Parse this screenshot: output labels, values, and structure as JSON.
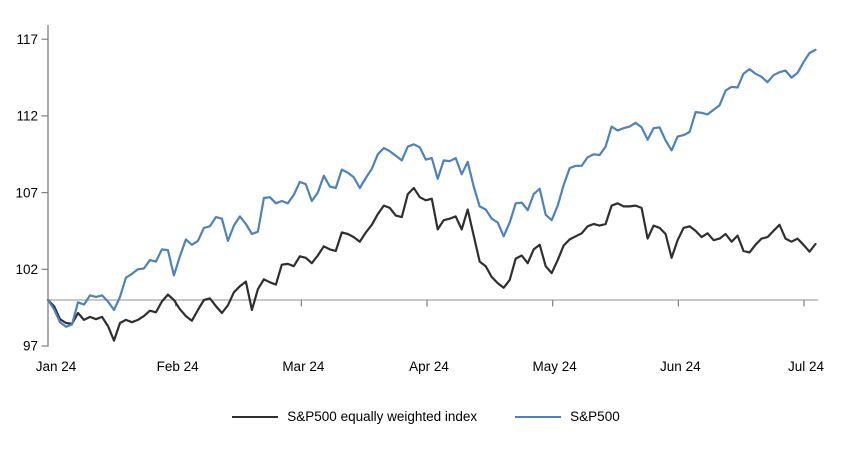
{
  "chart_data": {
    "type": "line",
    "title": "",
    "x_tick_labels": [
      "Jan 24",
      "Feb 24",
      "Mar 24",
      "Apr 24",
      "May 24",
      "Jun 24",
      "Jul 24"
    ],
    "y_ticks": [
      97,
      102,
      107,
      112,
      117
    ],
    "ylim": [
      97,
      117.5
    ],
    "baseline_value": 100,
    "grid": false,
    "legend_position": "bottom-center",
    "series": [
      {
        "name": "S&P500 equally weighted index",
        "color": "#2f2f2f",
        "values": [
          100.0,
          99.6,
          98.75,
          98.5,
          98.45,
          99.15,
          98.7,
          98.9,
          98.75,
          98.9,
          98.3,
          97.35,
          98.5,
          98.7,
          98.55,
          98.7,
          98.95,
          99.3,
          99.2,
          99.9,
          100.35,
          100.0,
          99.4,
          98.95,
          98.65,
          99.35,
          100.0,
          100.1,
          99.6,
          99.15,
          99.65,
          100.5,
          100.9,
          101.2,
          99.35,
          100.7,
          101.35,
          101.15,
          101.0,
          102.3,
          102.35,
          102.2,
          102.85,
          102.75,
          102.4,
          102.9,
          103.5,
          103.3,
          103.2,
          104.4,
          104.3,
          104.1,
          103.8,
          104.4,
          104.9,
          105.6,
          106.15,
          106.0,
          105.5,
          105.4,
          106.9,
          107.3,
          106.7,
          106.5,
          106.6,
          104.6,
          105.2,
          105.3,
          105.45,
          104.6,
          105.9,
          104.2,
          102.5,
          102.2,
          101.5,
          101.1,
          100.8,
          101.3,
          102.7,
          102.9,
          102.4,
          103.3,
          103.6,
          102.2,
          101.75,
          102.6,
          103.55,
          103.95,
          104.15,
          104.35,
          104.8,
          104.95,
          104.85,
          104.95,
          106.15,
          106.3,
          106.1,
          106.1,
          106.15,
          106.0,
          104.0,
          104.85,
          104.7,
          104.3,
          102.75,
          103.9,
          104.7,
          104.8,
          104.5,
          104.1,
          104.35,
          103.9,
          104.0,
          104.3,
          103.8,
          104.2,
          103.2,
          103.1,
          103.6,
          104.0,
          104.1,
          104.5,
          104.9,
          104.0,
          103.8,
          104.0,
          103.6,
          103.15,
          103.65
        ]
      },
      {
        "name": "S&P500",
        "color": "#4f81bd",
        "values": [
          100.0,
          99.4,
          98.55,
          98.25,
          98.4,
          99.85,
          99.7,
          100.3,
          100.2,
          100.3,
          99.9,
          99.35,
          100.2,
          101.45,
          101.7,
          102.0,
          102.05,
          102.6,
          102.5,
          103.3,
          103.25,
          101.6,
          102.85,
          103.95,
          103.6,
          103.85,
          104.7,
          104.8,
          105.4,
          105.3,
          103.85,
          104.85,
          105.45,
          104.95,
          104.3,
          104.45,
          106.65,
          106.7,
          106.3,
          106.45,
          106.3,
          106.85,
          107.7,
          107.55,
          106.45,
          107.0,
          108.1,
          107.4,
          107.3,
          108.5,
          108.3,
          108.0,
          107.3,
          107.95,
          108.55,
          109.5,
          109.9,
          109.7,
          109.4,
          109.1,
          110.0,
          110.15,
          109.95,
          109.15,
          109.25,
          107.9,
          109.1,
          109.05,
          109.25,
          108.2,
          109.0,
          107.4,
          106.1,
          105.9,
          105.3,
          105.05,
          104.15,
          105.05,
          106.3,
          106.35,
          105.85,
          106.9,
          107.25,
          105.55,
          105.2,
          106.15,
          107.5,
          108.6,
          108.75,
          108.75,
          109.3,
          109.5,
          109.45,
          110.0,
          111.3,
          111.05,
          111.2,
          111.3,
          111.55,
          111.25,
          110.45,
          111.2,
          111.25,
          110.4,
          109.75,
          110.65,
          110.75,
          110.95,
          112.25,
          112.2,
          112.1,
          112.4,
          112.7,
          113.65,
          113.9,
          113.85,
          114.75,
          115.05,
          114.75,
          114.55,
          114.2,
          114.65,
          114.85,
          114.95,
          114.5,
          114.8,
          115.5,
          116.1,
          116.3
        ]
      }
    ]
  },
  "colors": {
    "axis": "#808080",
    "baseline": "#a6a6a6",
    "text": "#000000",
    "background": "#ffffff"
  }
}
